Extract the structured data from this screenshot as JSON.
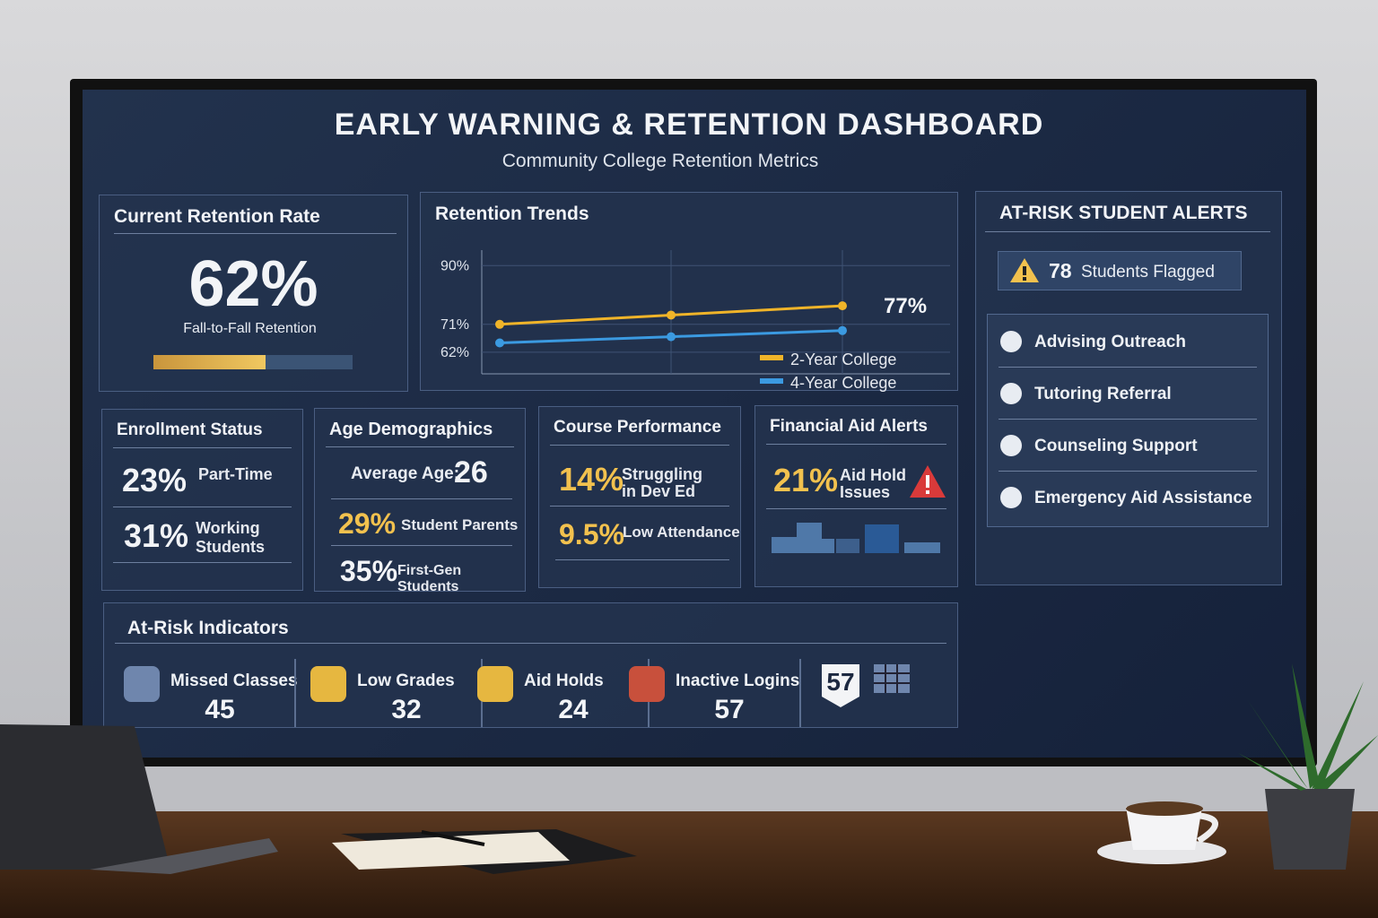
{
  "header": {
    "title": "EARLY WARNING & RETENTION DASHBOARD",
    "subtitle": "Community College Retention Metrics"
  },
  "retention": {
    "title": "Current Retention Rate",
    "value": "62%",
    "label": "Fall-to-Fall Retention"
  },
  "chart_data": {
    "type": "line",
    "title": "Retention Trends",
    "categories": [
      null,
      null,
      null
    ],
    "series": [
      {
        "name": "2-Year College",
        "color": "#f0b429",
        "values": [
          71,
          74,
          77
        ],
        "value_labels": [
          null,
          null,
          "77%"
        ]
      },
      {
        "name": "4-Year College",
        "color": "#3b9ae1",
        "values": [
          65,
          67,
          69
        ]
      }
    ],
    "ylim": [
      55,
      95
    ],
    "yticks": [
      {
        "value": 62,
        "label": "62%"
      },
      {
        "value": 71,
        "label": "71%"
      },
      {
        "value": 90,
        "label": "90%"
      }
    ],
    "grid": true
  },
  "alerts": {
    "title": "AT-RISK STUDENT ALERTS",
    "flag_count": "78",
    "flag_label": "Students Flagged",
    "actions": [
      "Advising Outreach",
      "Tutoring Referral",
      "Counseling Support",
      "Emergency Aid Assistance"
    ]
  },
  "enrollment": {
    "title": "Enrollment Status",
    "items": [
      {
        "value": "23%",
        "label": "Part-Time"
      },
      {
        "value": "31%",
        "label": "Working Students"
      }
    ]
  },
  "age": {
    "title": "Age Demographics",
    "average_label": "Average Age:",
    "average": "26",
    "items": [
      {
        "value": "29%",
        "label": "Student Parents"
      },
      {
        "value": "35%",
        "label": "First-Gen Students"
      }
    ]
  },
  "course": {
    "title": "Course Performance",
    "items": [
      {
        "value": "14%",
        "label": "Struggling in Dev Ed"
      },
      {
        "value": "9.5%",
        "label": "Low Attendance"
      }
    ]
  },
  "financial": {
    "title": "Financial Aid Alerts",
    "value": "21%",
    "label": "Aid Hold Issues"
  },
  "indicators": {
    "title": "At-Risk Indicators",
    "items": [
      {
        "label": "Missed Classes",
        "value": "45"
      },
      {
        "label": "Low Grades",
        "value": "32"
      },
      {
        "label": "Aid Holds",
        "value": "24"
      },
      {
        "label": "Inactive Logins",
        "value": "57"
      }
    ],
    "badge": "57"
  }
}
